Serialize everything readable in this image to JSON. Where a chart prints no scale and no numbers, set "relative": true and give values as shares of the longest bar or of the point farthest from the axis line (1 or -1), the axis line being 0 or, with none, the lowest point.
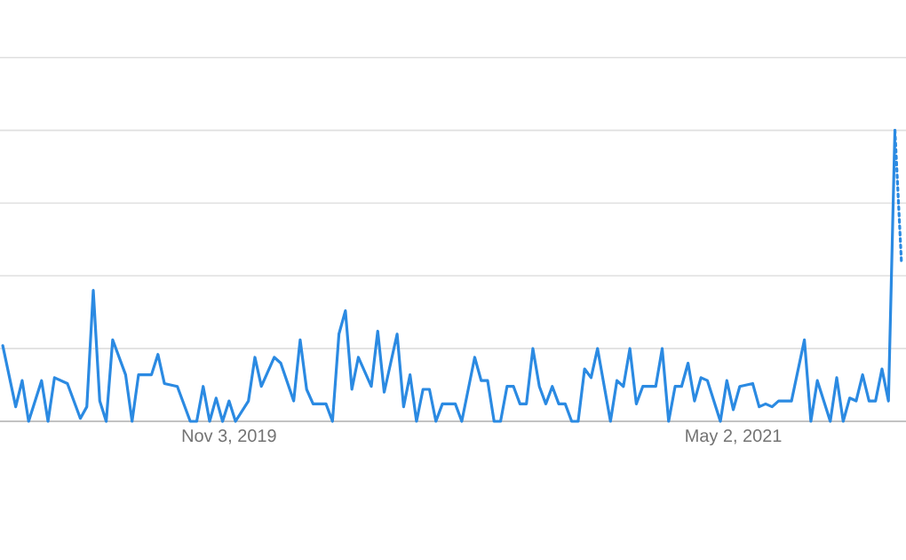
{
  "chart_data": {
    "type": "line",
    "relative": true,
    "grid": "y",
    "marker": "none",
    "xlim": [
      "2019-02-28",
      "2021-11-05"
    ],
    "xticks": [
      {
        "value": "2019-11-03",
        "label": "Nov 3, 2019"
      },
      {
        "value": "2021-05-02",
        "label": "May 2, 2021"
      }
    ],
    "series": [
      {
        "color": "#2b8ae2",
        "line_style": "solid",
        "x": [
          "2019-03-03",
          "2019-03-17",
          "2019-03-24",
          "2019-03-31",
          "2019-04-14",
          "2019-04-21",
          "2019-04-28",
          "2019-05-12",
          "2019-05-26",
          "2019-06-02",
          "2019-06-09",
          "2019-06-16",
          "2019-06-23",
          "2019-06-30",
          "2019-07-14",
          "2019-07-21",
          "2019-07-28",
          "2019-08-11",
          "2019-08-18",
          "2019-08-25",
          "2019-09-08",
          "2019-09-22",
          "2019-09-29",
          "2019-10-06",
          "2019-10-13",
          "2019-10-20",
          "2019-10-27",
          "2019-11-03",
          "2019-11-10",
          "2019-11-24",
          "2019-12-01",
          "2019-12-08",
          "2019-12-22",
          "2019-12-29",
          "2020-01-12",
          "2020-01-19",
          "2020-01-26",
          "2020-02-02",
          "2020-02-16",
          "2020-02-23",
          "2020-03-01",
          "2020-03-08",
          "2020-03-15",
          "2020-03-22",
          "2020-04-05",
          "2020-04-12",
          "2020-04-19",
          "2020-05-03",
          "2020-05-10",
          "2020-05-17",
          "2020-05-24",
          "2020-05-31",
          "2020-06-07",
          "2020-06-14",
          "2020-06-21",
          "2020-07-05",
          "2020-07-12",
          "2020-07-26",
          "2020-08-02",
          "2020-08-09",
          "2020-08-16",
          "2020-08-23",
          "2020-08-30",
          "2020-09-06",
          "2020-09-13",
          "2020-09-20",
          "2020-09-27",
          "2020-10-04",
          "2020-10-11",
          "2020-10-18",
          "2020-10-25",
          "2020-11-01",
          "2020-11-08",
          "2020-11-15",
          "2020-11-22",
          "2020-11-29",
          "2020-12-06",
          "2020-12-20",
          "2020-12-27",
          "2021-01-03",
          "2021-01-10",
          "2021-01-17",
          "2021-01-24",
          "2021-02-07",
          "2021-02-14",
          "2021-02-21",
          "2021-02-28",
          "2021-03-07",
          "2021-03-14",
          "2021-03-21",
          "2021-03-28",
          "2021-04-04",
          "2021-04-18",
          "2021-04-25",
          "2021-05-02",
          "2021-05-09",
          "2021-05-23",
          "2021-05-30",
          "2021-06-06",
          "2021-06-13",
          "2021-06-20",
          "2021-07-04",
          "2021-07-18",
          "2021-07-25",
          "2021-08-01",
          "2021-08-15",
          "2021-08-22",
          "2021-08-29",
          "2021-09-05",
          "2021-09-12",
          "2021-09-19",
          "2021-09-26",
          "2021-10-03",
          "2021-10-10",
          "2021-10-17",
          "2021-10-24"
        ],
        "values": [
          0.26,
          0.05,
          0.14,
          0,
          0.14,
          0,
          0.15,
          0.13,
          0.01,
          0.05,
          0.45,
          0.07,
          0,
          0.28,
          0.16,
          0,
          0.16,
          0.16,
          0.23,
          0.13,
          0.12,
          0,
          0,
          0.12,
          0,
          0.08,
          0,
          0.07,
          0,
          0.07,
          0.22,
          0.12,
          0.22,
          0.2,
          0.07,
          0.28,
          0.11,
          0.06,
          0.06,
          0,
          0.3,
          0.38,
          0.11,
          0.22,
          0.12,
          0.31,
          0.1,
          0.3,
          0.05,
          0.16,
          0,
          0.11,
          0.11,
          0,
          0.06,
          0.06,
          0,
          0.22,
          0.14,
          0.14,
          0,
          0,
          0.12,
          0.12,
          0.06,
          0.06,
          0.25,
          0.12,
          0.06,
          0.12,
          0.06,
          0.06,
          0,
          0,
          0.18,
          0.15,
          0.25,
          0,
          0.14,
          0.12,
          0.25,
          0.06,
          0.12,
          0.12,
          0.25,
          0,
          0.12,
          0.12,
          0.2,
          0.07,
          0.15,
          0.14,
          0,
          0.14,
          0.04,
          0.12,
          0.13,
          0.05,
          0.06,
          0.05,
          0.07,
          0.07,
          0.28,
          0,
          0.14,
          0,
          0.15,
          0,
          0.08,
          0.07,
          0.16,
          0.07,
          0.07,
          0.18,
          0.07,
          1
        ]
      },
      {
        "color": "#2b8ae2",
        "line_style": "dotted",
        "x": [
          "2021-10-24",
          "2021-10-31"
        ],
        "values": [
          1,
          0.55
        ]
      }
    ]
  }
}
